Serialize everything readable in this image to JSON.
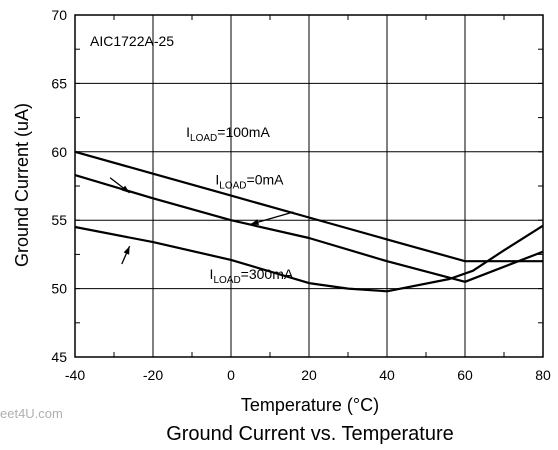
{
  "chart_data": {
    "type": "line",
    "title": "Ground Current vs. Temperature",
    "xlabel": "Temperature (°C)",
    "ylabel": "Ground Current (uA)",
    "xlim": [
      -40,
      80
    ],
    "ylim": [
      45,
      70
    ],
    "x_ticks": [
      -40,
      -20,
      0,
      20,
      40,
      60,
      80
    ],
    "x_tick_labels": [
      "-40",
      "-20",
      "0",
      "20",
      "40",
      "60",
      "80"
    ],
    "y_ticks": [
      45,
      50,
      55,
      60,
      65,
      70
    ],
    "y_tick_labels": [
      "45",
      "50",
      "55",
      "60",
      "65",
      "70"
    ],
    "grid": true,
    "device_label": "AIC1722A-25",
    "watermark": "eet4U.com",
    "series": [
      {
        "name": "ILOAD=0mA",
        "label_main": "I",
        "label_sub": "LOAD",
        "label_rest": "=0mA",
        "x": [
          -40,
          -20,
          0,
          20,
          40,
          60,
          80
        ],
        "y": [
          60.0,
          58.4,
          56.8,
          55.2,
          53.6,
          52.0,
          52.0
        ]
      },
      {
        "name": "ILOAD=100mA",
        "label_main": "I",
        "label_sub": "LOAD",
        "label_rest": "=100mA",
        "x": [
          -40,
          -20,
          0,
          20,
          40,
          60,
          80
        ],
        "y": [
          58.3,
          56.6,
          55.0,
          53.7,
          52.0,
          50.5,
          52.7
        ]
      },
      {
        "name": "ILOAD=300mA",
        "label_main": "I",
        "label_sub": "LOAD",
        "label_rest": "=300mA",
        "x": [
          -40,
          -20,
          0,
          20,
          30,
          40,
          56,
          62,
          70,
          80
        ],
        "y": [
          54.5,
          53.4,
          52.1,
          50.4,
          50.0,
          49.8,
          50.7,
          51.3,
          52.8,
          54.6
        ]
      }
    ],
    "annotations": [
      {
        "series": 0,
        "text_x": -4,
        "text_y": 57.6,
        "arrow_from": [
          16,
          55.6
        ],
        "arrow_to": [
          5,
          54.7
        ]
      },
      {
        "series": 1,
        "text_x": -11.5,
        "text_y": 61.1,
        "arrow_from": [
          -31,
          58.1
        ],
        "arrow_to": [
          -26,
          57.0
        ]
      },
      {
        "series": 2,
        "text_x": -5.5,
        "text_y": 50.7,
        "arrow_from": [
          -28,
          51.8
        ],
        "arrow_to": [
          -26,
          53.1
        ]
      }
    ]
  }
}
